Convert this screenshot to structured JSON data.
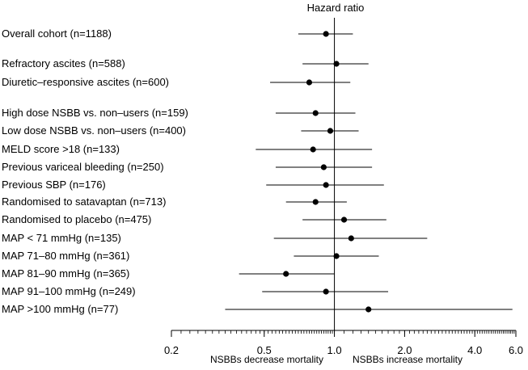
{
  "chart_data": {
    "type": "forest",
    "title": "Hazard ratio",
    "scale": "log",
    "xlim": [
      0.2,
      6.0
    ],
    "reference_line": 1.0,
    "x_ticks": [
      "0.2",
      "0.5",
      "1.0",
      "2.0",
      "4.0",
      "6.0"
    ],
    "x_tick_values": [
      0.2,
      0.5,
      1.0,
      2.0,
      4.0,
      6.0
    ],
    "annotation_left": "NSBBs decrease mortality",
    "annotation_right": "NSBBs increase mortality",
    "rows": [
      {
        "label": "Overall cohort (n=1188)",
        "hr": 0.92,
        "lo": 0.7,
        "hi": 1.2
      },
      {
        "label": "Refractory ascites (n=588)",
        "hr": 1.02,
        "lo": 0.73,
        "hi": 1.4
      },
      {
        "label": "Diuretic–responsive ascites (n=600)",
        "hr": 0.78,
        "lo": 0.53,
        "hi": 1.17
      },
      {
        "label": "High dose NSBB vs. non–users (n=159)",
        "hr": 0.83,
        "lo": 0.56,
        "hi": 1.23
      },
      {
        "label": "Low dose NSBB vs. non–users (n=400)",
        "hr": 0.96,
        "lo": 0.72,
        "hi": 1.27
      },
      {
        "label": "MELD score >18 (n=133)",
        "hr": 0.81,
        "lo": 0.46,
        "hi": 1.45
      },
      {
        "label": "Previous variceal bleeding (n=250)",
        "hr": 0.9,
        "lo": 0.56,
        "hi": 1.45
      },
      {
        "label": "Previous SBP (n=176)",
        "hr": 0.92,
        "lo": 0.51,
        "hi": 1.63
      },
      {
        "label": "Randomised to satavaptan (n=713)",
        "hr": 0.83,
        "lo": 0.62,
        "hi": 1.13
      },
      {
        "label": "Randomised to placebo (n=475)",
        "hr": 1.1,
        "lo": 0.73,
        "hi": 1.67
      },
      {
        "label": "MAP < 71 mmHg (n=135)",
        "hr": 1.18,
        "lo": 0.55,
        "hi": 2.5
      },
      {
        "label": "MAP 71–80 mmHg (n=361)",
        "hr": 1.02,
        "lo": 0.67,
        "hi": 1.55
      },
      {
        "label": "MAP 81–90 mmHg (n=365)",
        "hr": 0.62,
        "lo": 0.39,
        "hi": 1.0
      },
      {
        "label": "MAP 91–100 mmHg (n=249)",
        "hr": 0.92,
        "lo": 0.49,
        "hi": 1.7
      },
      {
        "label": "MAP >100 mmHg (n=77)",
        "hr": 1.4,
        "lo": 0.34,
        "hi": 5.8
      }
    ]
  }
}
